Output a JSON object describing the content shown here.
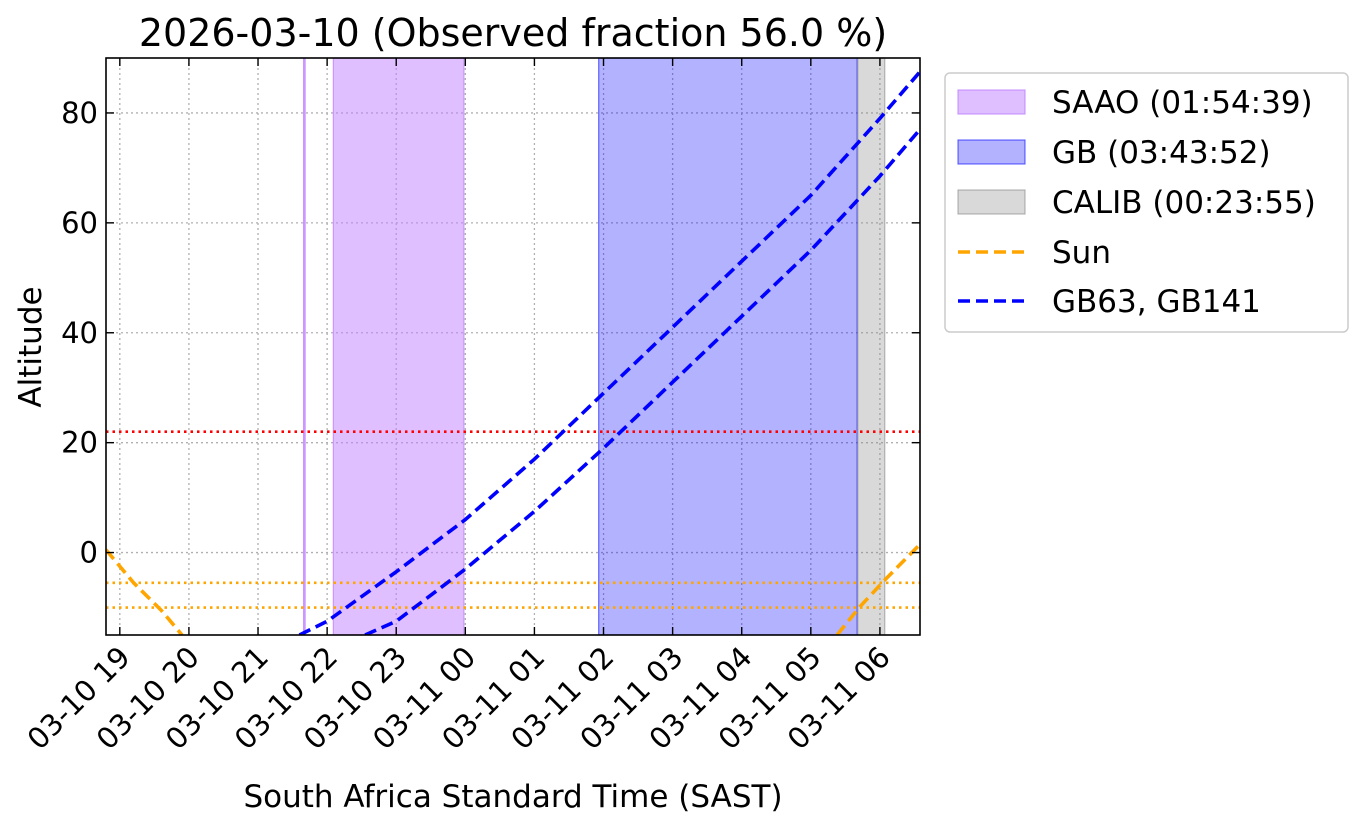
{
  "chart_data": {
    "type": "line",
    "title": "2026-03-10 (Observed fraction 56.0 %)",
    "xlabel": "South Africa Standard Time (SAST)",
    "ylabel": "Altitude",
    "xlim_hours": [
      18.8,
      30.58
    ],
    "ylim": [
      -15,
      90
    ],
    "grid": true,
    "x_ticks": [
      {
        "hour": 19,
        "label": "03-10 19"
      },
      {
        "hour": 20,
        "label": "03-10 20"
      },
      {
        "hour": 21,
        "label": "03-10 21"
      },
      {
        "hour": 22,
        "label": "03-10 22"
      },
      {
        "hour": 23,
        "label": "03-10 23"
      },
      {
        "hour": 24,
        "label": "03-11 00"
      },
      {
        "hour": 25,
        "label": "03-11 01"
      },
      {
        "hour": 26,
        "label": "03-11 02"
      },
      {
        "hour": 27,
        "label": "03-11 03"
      },
      {
        "hour": 28,
        "label": "03-11 04"
      },
      {
        "hour": 29,
        "label": "03-11 05"
      },
      {
        "hour": 30,
        "label": "03-11 06"
      }
    ],
    "y_ticks": [
      {
        "value": 0,
        "label": "0"
      },
      {
        "value": 20,
        "label": "20"
      },
      {
        "value": 40,
        "label": "40"
      },
      {
        "value": 60,
        "label": "60"
      },
      {
        "value": 80,
        "label": "80"
      }
    ],
    "spans": [
      {
        "name": "SAAO",
        "start": 21.66,
        "end": 21.68,
        "color": "#bf80ff",
        "opacity": 0.55
      },
      {
        "name": "SAAO",
        "start": 22.09,
        "end": 23.98,
        "color": "#bf80ff",
        "opacity": 0.5
      },
      {
        "name": "GB",
        "start": 25.93,
        "end": 29.67,
        "color": "#0000ff",
        "opacity": 0.3
      },
      {
        "name": "CALIB",
        "start": 29.68,
        "end": 30.07,
        "color": "#808080",
        "opacity": 0.3
      }
    ],
    "hlines": [
      {
        "value": 22,
        "color": "#ff0000"
      },
      {
        "value": -5.5,
        "color": "#ffa500"
      },
      {
        "value": -10,
        "color": "#ffa500"
      }
    ],
    "series": [
      {
        "name": "Sun",
        "color": "#ffa500",
        "x": [
          18.8,
          19.2,
          19.6,
          19.9
        ],
        "y": [
          0.5,
          -5.5,
          -10.5,
          -15
        ]
      },
      {
        "name": "Sun",
        "color": "#ffa500",
        "x": [
          29.38,
          29.7,
          30.07,
          30.58
        ],
        "y": [
          -15,
          -10,
          -5,
          1.5
        ]
      },
      {
        "name": "GB63",
        "color": "#0000ff",
        "x": [
          21.6,
          22.0,
          23.0,
          24.0,
          25.0,
          26.0,
          27.0,
          28.0,
          29.0,
          30.0,
          30.58
        ],
        "y": [
          -15,
          -12.5,
          -3.5,
          6,
          17,
          29,
          41,
          53,
          65,
          79,
          87.5
        ]
      },
      {
        "name": "GB141",
        "color": "#0000ff",
        "x": [
          22.55,
          23.0,
          24.0,
          25.0,
          26.0,
          27.0,
          28.0,
          29.0,
          30.0,
          30.58
        ],
        "y": [
          -15,
          -12.5,
          -3,
          7.5,
          19,
          31,
          43,
          55,
          68.5,
          77
        ]
      }
    ],
    "legend": {
      "position": "outside-top-right",
      "entries": [
        {
          "type": "patch",
          "label": "SAAO (01:54:39)",
          "color": "#bf80ff",
          "opacity": 0.5
        },
        {
          "type": "patch",
          "label": "GB (03:43:52)",
          "color": "#0000ff",
          "opacity": 0.3
        },
        {
          "type": "patch",
          "label": "CALIB (00:23:55)",
          "color": "#808080",
          "opacity": 0.3
        },
        {
          "type": "line",
          "label": "Sun",
          "color": "#ffa500"
        },
        {
          "type": "line",
          "label": "GB63, GB141",
          "color": "#0000ff"
        }
      ]
    }
  }
}
